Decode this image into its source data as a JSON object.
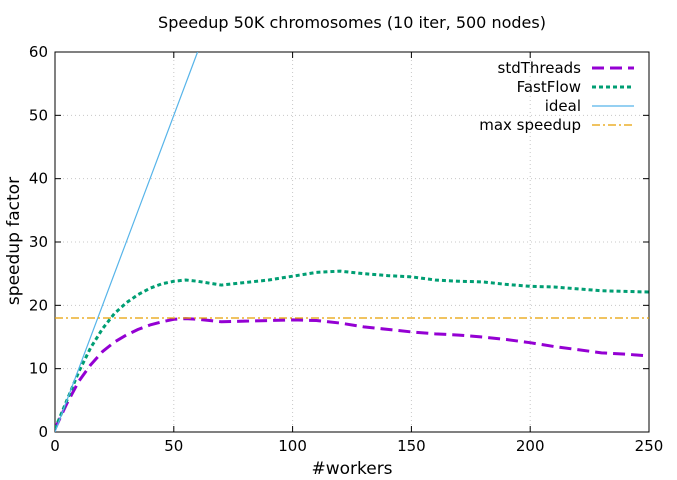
{
  "chart_data": {
    "type": "line",
    "title": "Speedup 50K chromosomes (10 iter, 500 nodes)",
    "xlabel": "#workers",
    "ylabel": "speedup factor",
    "xlim": [
      0,
      250
    ],
    "ylim": [
      0,
      60
    ],
    "xticks": [
      0,
      50,
      100,
      150,
      200,
      250
    ],
    "yticks": [
      0,
      10,
      20,
      30,
      40,
      50,
      60
    ],
    "grid": true,
    "legend_position": "top-right",
    "series": [
      {
        "name": "stdThreads",
        "color": "#9400d3",
        "style": "dashed-thick",
        "x": [
          0,
          5,
          10,
          15,
          20,
          25,
          30,
          35,
          40,
          45,
          50,
          55,
          60,
          70,
          80,
          90,
          100,
          110,
          120,
          130,
          140,
          150,
          160,
          170,
          180,
          190,
          200,
          210,
          220,
          230,
          240,
          250
        ],
        "y": [
          0.5,
          4.5,
          8.0,
          10.6,
          12.7,
          14.2,
          15.3,
          16.2,
          16.9,
          17.4,
          17.8,
          17.9,
          17.8,
          17.4,
          17.5,
          17.6,
          17.7,
          17.6,
          17.2,
          16.6,
          16.2,
          15.8,
          15.5,
          15.3,
          15.0,
          14.6,
          14.1,
          13.5,
          13.0,
          12.5,
          12.3,
          12.0
        ]
      },
      {
        "name": "FastFlow",
        "color": "#009e73",
        "style": "dotted-thick",
        "x": [
          0,
          5,
          10,
          15,
          20,
          25,
          30,
          35,
          40,
          45,
          50,
          55,
          60,
          70,
          80,
          90,
          100,
          110,
          120,
          130,
          140,
          150,
          160,
          170,
          180,
          190,
          200,
          210,
          220,
          230,
          240,
          250
        ],
        "y": [
          0.5,
          5.0,
          9.5,
          13.3,
          16.3,
          18.7,
          20.4,
          21.7,
          22.7,
          23.4,
          23.8,
          24.0,
          23.8,
          23.2,
          23.6,
          24.0,
          24.6,
          25.2,
          25.4,
          25.0,
          24.7,
          24.5,
          24.0,
          23.8,
          23.7,
          23.3,
          23.0,
          22.9,
          22.6,
          22.3,
          22.2,
          22.1
        ]
      },
      {
        "name": "ideal",
        "color": "#56b4e9",
        "style": "solid-thin",
        "x": [
          0,
          60
        ],
        "y": [
          0,
          60
        ]
      },
      {
        "name": "max speedup",
        "color": "#e69f00",
        "style": "dashdot",
        "x": [
          0,
          250
        ],
        "y": [
          18,
          18
        ]
      }
    ]
  }
}
